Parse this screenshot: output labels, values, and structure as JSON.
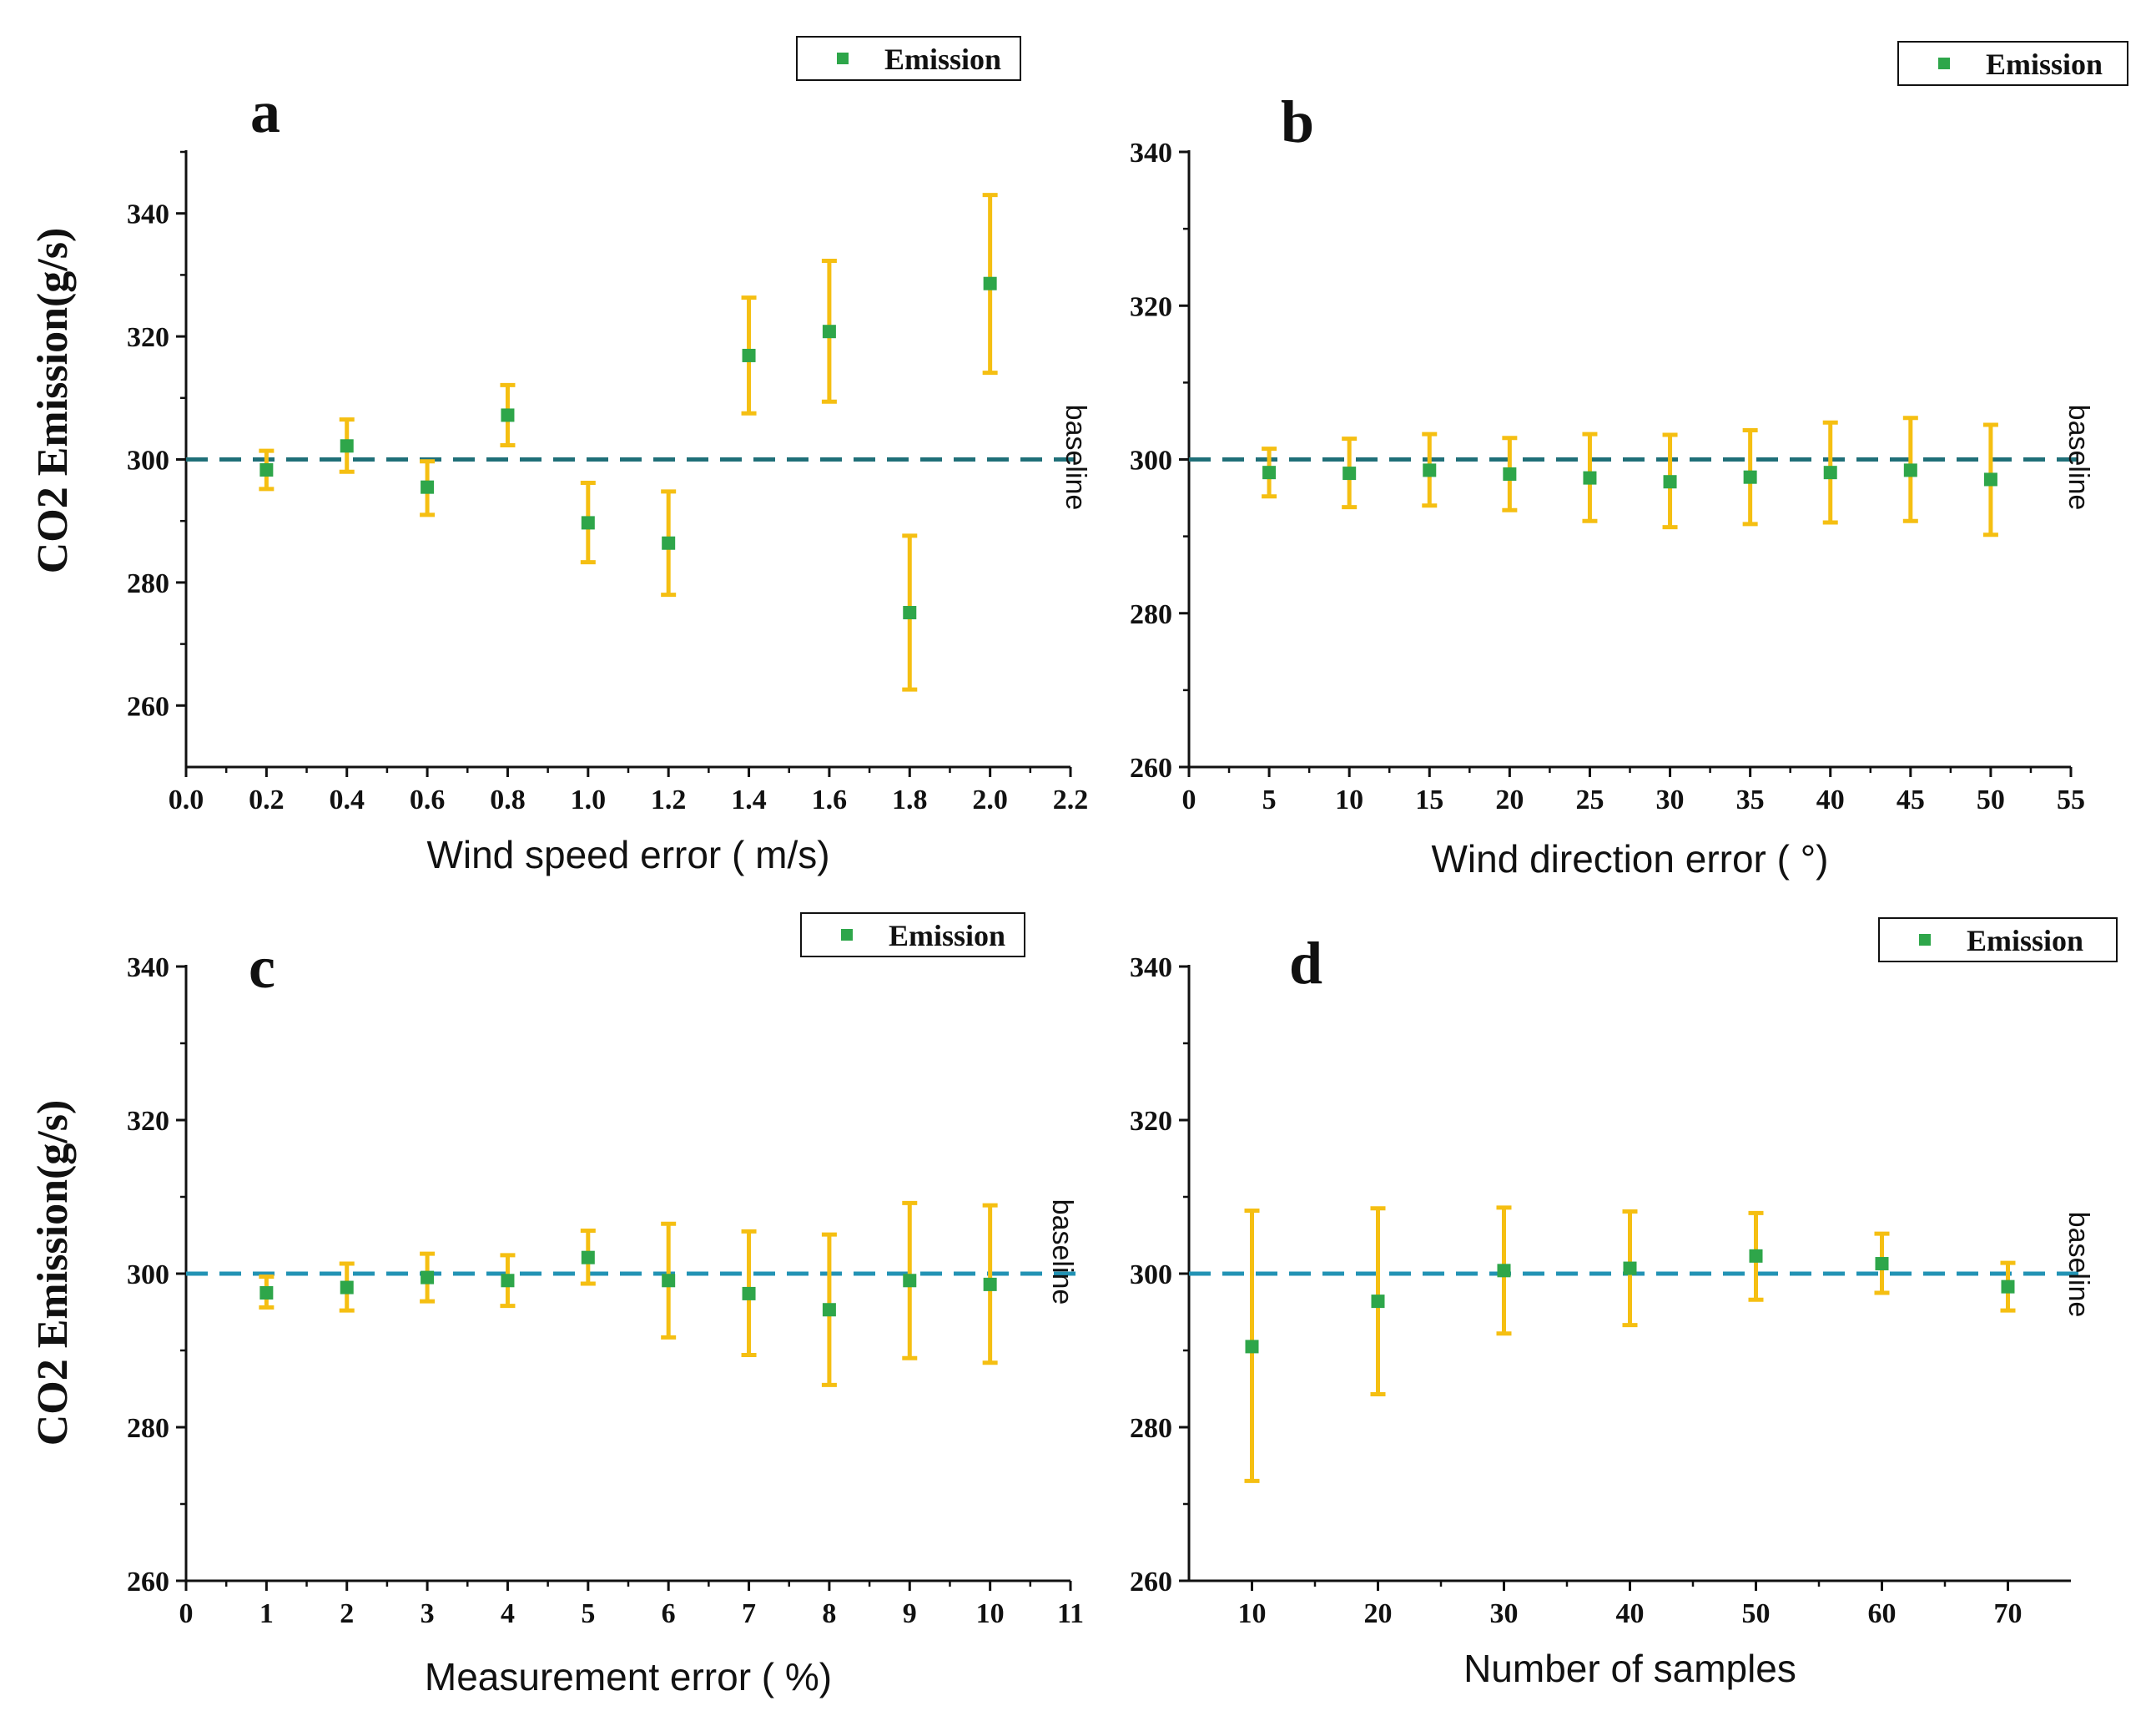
{
  "chart_data": [
    {
      "type": "scatter",
      "panel_label": "a",
      "xlabel": "Wind speed error ( m/s)",
      "ylabel": "CO2 Emission(g/s)",
      "xlim": [
        0.0,
        2.2
      ],
      "ylim": [
        250,
        350
      ],
      "xticks": [
        "0.0",
        "0.2",
        "0.4",
        "0.6",
        "0.8",
        "1.0",
        "1.2",
        "1.4",
        "1.6",
        "1.8",
        "2.0",
        "2.2"
      ],
      "yticks": [
        "260",
        "280",
        "300",
        "320",
        "340"
      ],
      "baseline": 300,
      "baseline_label": "baseline",
      "baseline_color": "#1f6f78",
      "marker_color": "#2ea64a",
      "errorbar_color": "#f5bf12",
      "legend": [
        "Emission"
      ],
      "series": [
        {
          "name": "Emission",
          "x": [
            0.2,
            0.4,
            0.6,
            0.8,
            1.0,
            1.2,
            1.4,
            1.6,
            1.8,
            2.0
          ],
          "y": [
            298.3,
            302.2,
            295.5,
            307.2,
            289.7,
            286.4,
            316.9,
            320.8,
            275.1,
            328.6
          ],
          "err_low": [
            295.2,
            298.0,
            291.0,
            302.3,
            283.3,
            278.0,
            307.5,
            309.4,
            262.6,
            314.1
          ],
          "err_high": [
            301.4,
            306.5,
            299.7,
            312.1,
            296.2,
            294.8,
            326.3,
            332.3,
            287.6,
            343.0
          ]
        }
      ]
    },
    {
      "type": "scatter",
      "panel_label": "b",
      "xlabel": "Wind direction error ( °)",
      "ylabel": "",
      "xlim": [
        0,
        55
      ],
      "ylim": [
        260,
        340
      ],
      "xticks": [
        "0",
        "5",
        "10",
        "15",
        "20",
        "25",
        "30",
        "35",
        "40",
        "45",
        "50",
        "55"
      ],
      "yticks": [
        "260",
        "280",
        "300",
        "320",
        "340"
      ],
      "baseline": 300,
      "baseline_label": "baseline",
      "baseline_color": "#1f6f78",
      "marker_color": "#2ea64a",
      "errorbar_color": "#f5bf12",
      "legend": [
        "Emission"
      ],
      "series": [
        {
          "name": "Emission",
          "x": [
            5,
            10,
            15,
            20,
            25,
            30,
            35,
            40,
            45,
            50
          ],
          "y": [
            298.3,
            298.2,
            298.6,
            298.1,
            297.6,
            297.1,
            297.7,
            298.3,
            298.6,
            297.4
          ],
          "err_low": [
            295.2,
            293.8,
            294.0,
            293.4,
            292.0,
            291.2,
            291.6,
            291.8,
            292.0,
            290.2
          ],
          "err_high": [
            301.4,
            302.7,
            303.3,
            302.8,
            303.3,
            303.2,
            303.8,
            304.8,
            305.4,
            304.5
          ]
        }
      ]
    },
    {
      "type": "scatter",
      "panel_label": "c",
      "xlabel": "Measurement error ( %)",
      "ylabel": "CO2 Emission(g/s)",
      "xlim": [
        0,
        11
      ],
      "ylim": [
        260,
        340
      ],
      "xticks": [
        "0",
        "1",
        "2",
        "3",
        "4",
        "5",
        "6",
        "7",
        "8",
        "9",
        "10",
        "11"
      ],
      "yticks": [
        "260",
        "280",
        "300",
        "320",
        "340"
      ],
      "baseline": 300,
      "baseline_label": "baseline",
      "baseline_color": "#2293b4",
      "marker_color": "#2ea64a",
      "errorbar_color": "#f5bf12",
      "legend": [
        "Emission"
      ],
      "series": [
        {
          "name": "Emission",
          "x": [
            1,
            2,
            3,
            4,
            5,
            6,
            7,
            8,
            9,
            10
          ],
          "y": [
            297.5,
            298.2,
            299.5,
            299.1,
            302.1,
            299.1,
            297.4,
            295.3,
            299.1,
            298.6
          ],
          "err_low": [
            295.6,
            295.2,
            296.4,
            295.8,
            298.7,
            291.7,
            289.4,
            285.5,
            289.0,
            288.4
          ],
          "err_high": [
            299.6,
            301.3,
            302.6,
            302.4,
            305.6,
            306.5,
            305.5,
            305.1,
            309.2,
            308.9
          ]
        }
      ]
    },
    {
      "type": "scatter",
      "panel_label": "d",
      "xlabel": "Number of samples",
      "ylabel": "",
      "xlim": [
        5,
        75
      ],
      "ylim": [
        260,
        340
      ],
      "xticks": [
        "10",
        "20",
        "30",
        "40",
        "50",
        "60",
        "70"
      ],
      "yticks": [
        "260",
        "280",
        "300",
        "320",
        "340"
      ],
      "baseline": 300,
      "baseline_label": "baseline",
      "baseline_color": "#2293b4",
      "marker_color": "#2ea64a",
      "errorbar_color": "#f5bf12",
      "legend": [
        "Emission"
      ],
      "series": [
        {
          "name": "Emission",
          "x": [
            10,
            20,
            30,
            40,
            50,
            60,
            70
          ],
          "y": [
            290.5,
            296.4,
            300.4,
            300.7,
            302.3,
            301.3,
            298.3
          ],
          "err_low": [
            273.0,
            284.3,
            292.2,
            293.3,
            296.6,
            297.5,
            295.2
          ],
          "err_high": [
            308.2,
            308.5,
            308.6,
            308.1,
            307.9,
            305.2,
            301.4
          ]
        }
      ]
    }
  ]
}
